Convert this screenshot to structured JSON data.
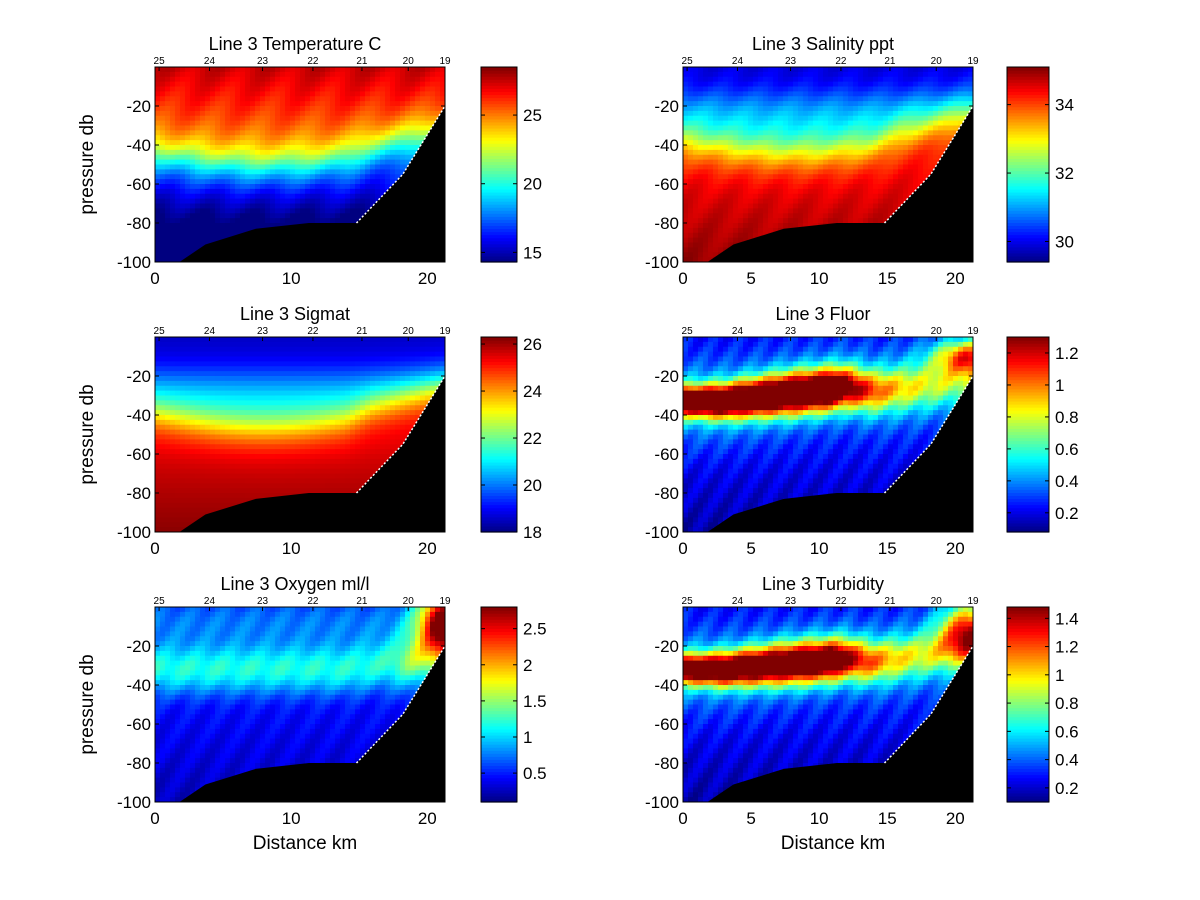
{
  "chart_data": [
    {
      "type": "heatmap",
      "title": "Line 3 Temperature C",
      "xlabel": "",
      "ylabel": "pressure db",
      "xlim": [
        0,
        21.3
      ],
      "ylim": [
        -100,
        0
      ],
      "xticks": [
        0,
        10,
        20
      ],
      "yticks": [
        -20,
        -40,
        -60,
        -80,
        -100
      ],
      "stations": [
        "25",
        "24",
        "23",
        "22",
        "21",
        "20",
        "19"
      ],
      "station_x": [
        0.3,
        4.0,
        7.9,
        11.6,
        15.2,
        18.6,
        21.3
      ],
      "colorbar": {
        "min": 14.3,
        "max": 28.5,
        "ticks": [
          15,
          20,
          25
        ]
      },
      "variable": "temperature",
      "surface_value": 28.0,
      "deep_value": 14.6,
      "bottom_depth": [
        [
          0,
          -100
        ],
        [
          1.8,
          -100
        ],
        [
          3.7,
          -91
        ],
        [
          7.4,
          -83
        ],
        [
          11.3,
          -80
        ],
        [
          14.8,
          -80
        ],
        [
          18.2,
          -55
        ],
        [
          21.3,
          -20
        ]
      ]
    },
    {
      "type": "heatmap",
      "title": "Line 3 Salinity ppt",
      "xlabel": "",
      "ylabel": "",
      "xlim": [
        0,
        21.3
      ],
      "ylim": [
        -100,
        0
      ],
      "xticks": [
        0,
        5,
        10,
        15,
        20
      ],
      "yticks": [
        -20,
        -40,
        -60,
        -80,
        -100
      ],
      "stations": [
        "25",
        "24",
        "23",
        "22",
        "21",
        "20",
        "19"
      ],
      "station_x": [
        0.3,
        4.0,
        7.9,
        11.6,
        15.2,
        18.6,
        21.3
      ],
      "colorbar": {
        "min": 29.4,
        "max": 35.1,
        "ticks": [
          30,
          32,
          34
        ]
      },
      "variable": "salinity",
      "surface_value": 29.6,
      "deep_value": 35.0,
      "bottom_depth": [
        [
          0,
          -100
        ],
        [
          1.8,
          -100
        ],
        [
          3.7,
          -91
        ],
        [
          7.4,
          -83
        ],
        [
          11.3,
          -80
        ],
        [
          14.8,
          -80
        ],
        [
          18.2,
          -55
        ],
        [
          21.3,
          -20
        ]
      ]
    },
    {
      "type": "heatmap",
      "title": "Line 3 Sigmat",
      "xlabel": "",
      "ylabel": "pressure db",
      "xlim": [
        0,
        21.3
      ],
      "ylim": [
        -100,
        0
      ],
      "xticks": [
        0,
        10,
        20
      ],
      "yticks": [
        -20,
        -40,
        -60,
        -80,
        -100
      ],
      "stations": [
        "25",
        "24",
        "23",
        "22",
        "21",
        "20",
        "19"
      ],
      "station_x": [
        0.3,
        4.0,
        7.9,
        11.6,
        15.2,
        18.6,
        21.3
      ],
      "colorbar": {
        "min": 18.0,
        "max": 26.3,
        "ticks": [
          18,
          20,
          22,
          24,
          26
        ]
      },
      "variable": "sigmat",
      "surface_value": 18.3,
      "deep_value": 26.2,
      "bottom_depth": [
        [
          0,
          -100
        ],
        [
          1.8,
          -100
        ],
        [
          3.7,
          -91
        ],
        [
          7.4,
          -83
        ],
        [
          11.3,
          -80
        ],
        [
          14.8,
          -80
        ],
        [
          18.2,
          -55
        ],
        [
          21.3,
          -20
        ]
      ]
    },
    {
      "type": "heatmap",
      "title": "Line 3 Fluor",
      "xlabel": "",
      "ylabel": "",
      "xlim": [
        0,
        21.3
      ],
      "ylim": [
        -100,
        0
      ],
      "xticks": [
        0,
        5,
        10,
        15,
        20
      ],
      "yticks": [
        -20,
        -40,
        -60,
        -80,
        -100
      ],
      "stations": [
        "25",
        "24",
        "23",
        "22",
        "21",
        "20",
        "19"
      ],
      "station_x": [
        0.3,
        4.0,
        7.9,
        11.6,
        15.2,
        18.6,
        21.3
      ],
      "colorbar": {
        "min": 0.08,
        "max": 1.3,
        "ticks": [
          0.2,
          0.4,
          0.6,
          0.8,
          1,
          1.2
        ]
      },
      "variable": "fluor",
      "max_layer_depth": -33,
      "peak_value": 1.25,
      "background_value": 0.15,
      "bottom_depth": [
        [
          0,
          -100
        ],
        [
          1.8,
          -100
        ],
        [
          3.7,
          -91
        ],
        [
          7.4,
          -83
        ],
        [
          11.3,
          -80
        ],
        [
          14.8,
          -80
        ],
        [
          18.2,
          -55
        ],
        [
          21.3,
          -20
        ]
      ]
    },
    {
      "type": "heatmap",
      "title": "Line 3 Oxygen ml/l",
      "xlabel": "Distance km",
      "ylabel": "pressure db",
      "xlim": [
        0,
        21.3
      ],
      "ylim": [
        -100,
        0
      ],
      "xticks": [
        0,
        10,
        20
      ],
      "yticks": [
        -20,
        -40,
        -60,
        -80,
        -100
      ],
      "stations": [
        "25",
        "24",
        "23",
        "22",
        "21",
        "20",
        "19"
      ],
      "station_x": [
        0.3,
        4.0,
        7.9,
        11.6,
        15.2,
        18.6,
        21.3
      ],
      "colorbar": {
        "min": 0.1,
        "max": 2.8,
        "ticks": [
          0.5,
          1,
          1.5,
          2,
          2.5
        ]
      },
      "variable": "oxygen",
      "peak_value": 2.6,
      "background_value": 0.25,
      "bottom_depth": [
        [
          0,
          -100
        ],
        [
          1.8,
          -100
        ],
        [
          3.7,
          -91
        ],
        [
          7.4,
          -83
        ],
        [
          11.3,
          -80
        ],
        [
          14.8,
          -80
        ],
        [
          18.2,
          -55
        ],
        [
          21.3,
          -20
        ]
      ]
    },
    {
      "type": "heatmap",
      "title": "Line 3 Turbidity",
      "xlabel": "Distance km",
      "ylabel": "",
      "xlim": [
        0,
        21.3
      ],
      "ylim": [
        -100,
        0
      ],
      "xticks": [
        0,
        5,
        10,
        15,
        20
      ],
      "yticks": [
        -20,
        -40,
        -60,
        -80,
        -100
      ],
      "stations": [
        "25",
        "24",
        "23",
        "22",
        "21",
        "20",
        "19"
      ],
      "station_x": [
        0.3,
        4.0,
        7.9,
        11.6,
        15.2,
        18.6,
        21.3
      ],
      "colorbar": {
        "min": 0.1,
        "max": 1.48,
        "ticks": [
          0.2,
          0.4,
          0.6,
          0.8,
          1,
          1.2,
          1.4
        ]
      },
      "variable": "turbidity",
      "max_layer_depth": -33,
      "peak_value": 1.35,
      "background_value": 0.15,
      "bottom_depth": [
        [
          0,
          -100
        ],
        [
          1.8,
          -100
        ],
        [
          3.7,
          -91
        ],
        [
          7.4,
          -83
        ],
        [
          11.3,
          -80
        ],
        [
          14.8,
          -80
        ],
        [
          18.2,
          -55
        ],
        [
          21.3,
          -20
        ]
      ]
    }
  ]
}
